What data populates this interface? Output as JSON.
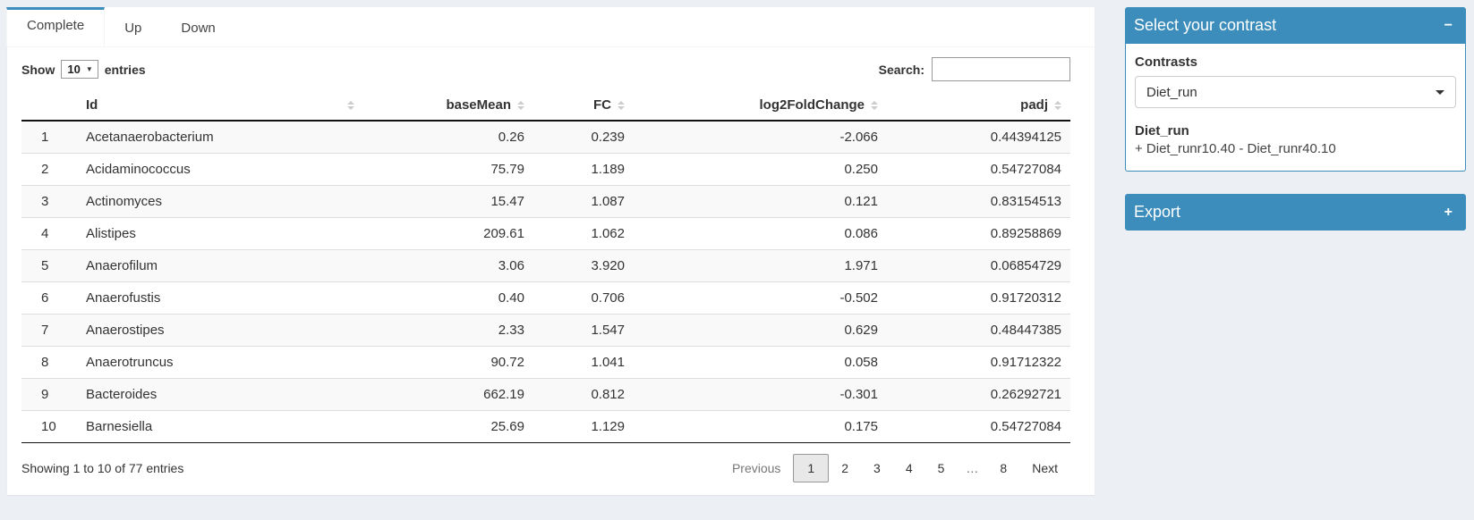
{
  "colors": {
    "primary": "#3c8dbc",
    "page_bg": "#ecf0f5"
  },
  "tabs": [
    {
      "label": "Complete",
      "active": true
    },
    {
      "label": "Up",
      "active": false
    },
    {
      "label": "Down",
      "active": false
    }
  ],
  "table_controls": {
    "show_label": "Show",
    "page_length": "10",
    "entries_label": "entries",
    "search_label": "Search:",
    "search_value": ""
  },
  "table": {
    "columns": [
      "Id",
      "baseMean",
      "FC",
      "log2FoldChange",
      "padj"
    ],
    "row_keys": [
      "num",
      "id",
      "baseMean",
      "fc",
      "log2fc",
      "padj"
    ],
    "rows": [
      {
        "num": "1",
        "id": "Acetanaerobacterium",
        "baseMean": "0.26",
        "fc": "0.239",
        "log2fc": "-2.066",
        "padj": "0.44394125"
      },
      {
        "num": "2",
        "id": "Acidaminococcus",
        "baseMean": "75.79",
        "fc": "1.189",
        "log2fc": "0.250",
        "padj": "0.54727084"
      },
      {
        "num": "3",
        "id": "Actinomyces",
        "baseMean": "15.47",
        "fc": "1.087",
        "log2fc": "0.121",
        "padj": "0.83154513"
      },
      {
        "num": "4",
        "id": "Alistipes",
        "baseMean": "209.61",
        "fc": "1.062",
        "log2fc": "0.086",
        "padj": "0.89258869"
      },
      {
        "num": "5",
        "id": "Anaerofilum",
        "baseMean": "3.06",
        "fc": "3.920",
        "log2fc": "1.971",
        "padj": "0.06854729"
      },
      {
        "num": "6",
        "id": "Anaerofustis",
        "baseMean": "0.40",
        "fc": "0.706",
        "log2fc": "-0.502",
        "padj": "0.91720312"
      },
      {
        "num": "7",
        "id": "Anaerostipes",
        "baseMean": "2.33",
        "fc": "1.547",
        "log2fc": "0.629",
        "padj": "0.48447385"
      },
      {
        "num": "8",
        "id": "Anaerotruncus",
        "baseMean": "90.72",
        "fc": "1.041",
        "log2fc": "0.058",
        "padj": "0.91712322"
      },
      {
        "num": "9",
        "id": "Bacteroides",
        "baseMean": "662.19",
        "fc": "0.812",
        "log2fc": "-0.301",
        "padj": "0.26292721"
      },
      {
        "num": "10",
        "id": "Barnesiella",
        "baseMean": "25.69",
        "fc": "1.129",
        "log2fc": "0.175",
        "padj": "0.54727084"
      }
    ]
  },
  "table_footer": {
    "info": "Showing 1 to 10 of 77 entries",
    "pagination": {
      "previous": "Previous",
      "pages": [
        "1",
        "2",
        "3",
        "4",
        "5",
        "…",
        "8"
      ],
      "current": "1",
      "next": "Next"
    }
  },
  "contrast_panel": {
    "title": "Select your contrast",
    "collapse_icon": "−",
    "contrasts_label": "Contrasts",
    "selected_contrast": "Diet_run",
    "contrast_name": "Diet_run",
    "contrast_formula": "+ Diet_runr10.40 - Diet_runr40.10"
  },
  "export_panel": {
    "title": "Export",
    "expand_icon": "+"
  }
}
